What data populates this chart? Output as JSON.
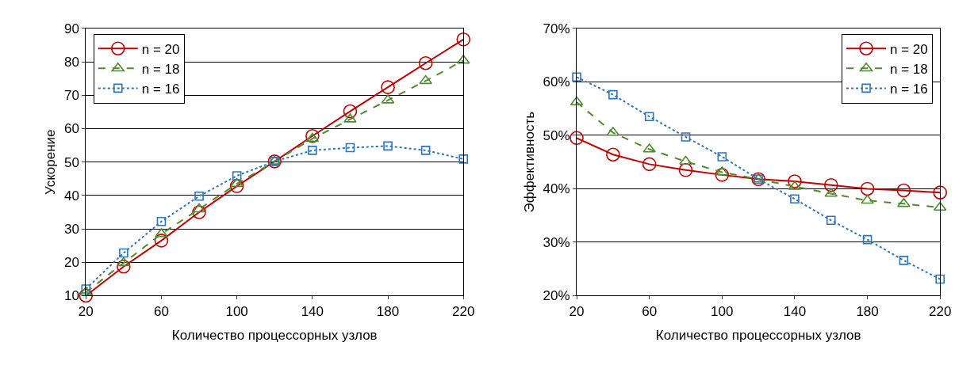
{
  "chart_data": [
    {
      "type": "line",
      "xlabel": "Количество процессорных узлов",
      "ylabel": "Ускорение",
      "x": [
        20,
        40,
        60,
        80,
        100,
        120,
        140,
        160,
        180,
        200,
        220
      ],
      "xlim": [
        20,
        220
      ],
      "xticks": [
        20,
        60,
        100,
        140,
        180,
        220
      ],
      "ylim": [
        10,
        90
      ],
      "yticks": [
        10,
        20,
        30,
        40,
        50,
        60,
        70,
        80,
        90
      ],
      "grid": "y",
      "legend": "top left",
      "series": [
        {
          "name": "n = 20",
          "color": "#c00000",
          "marker": "circle",
          "line_style": "solid",
          "values": [
            10,
            18.7,
            26.5,
            35,
            42.8,
            50.2,
            57.8,
            65.2,
            72.4,
            79.6,
            86.7
          ]
        },
        {
          "name": "n = 18",
          "color": "#4e8a2e",
          "marker": "triangle",
          "line_style": "dashed",
          "values": [
            11,
            19.8,
            28.5,
            35.9,
            43.5,
            50.2,
            57,
            62.8,
            68.5,
            74.3,
            80.4
          ]
        },
        {
          "name": "n = 16",
          "color": "#2e75b6",
          "marker": "square",
          "line_style": "dotted",
          "values": [
            12,
            22.8,
            32.2,
            39.8,
            45.9,
            50.2,
            53.5,
            54.3,
            54.8,
            53.5,
            50.9
          ]
        }
      ]
    },
    {
      "type": "line",
      "xlabel": "Количество процессорных узлов",
      "ylabel": "Эффективность",
      "x": [
        20,
        40,
        60,
        80,
        100,
        120,
        140,
        160,
        180,
        200,
        220
      ],
      "xlim": [
        20,
        220
      ],
      "xticks": [
        20,
        60,
        100,
        140,
        180,
        220
      ],
      "ylim": [
        20,
        70
      ],
      "yticks": [
        {
          "value": 20,
          "label": "20%"
        },
        {
          "value": 30,
          "label": "30%"
        },
        {
          "value": 40,
          "label": "40%"
        },
        {
          "value": 50,
          "label": "50%"
        },
        {
          "value": 60,
          "label": "60%"
        },
        {
          "value": 70,
          "label": "70%"
        }
      ],
      "grid": "y",
      "legend": "top right",
      "series": [
        {
          "name": "n = 20",
          "color": "#c00000",
          "marker": "circle",
          "line_style": "solid",
          "values": [
            49.5,
            46.4,
            44.6,
            43.5,
            42.6,
            41.8,
            41.4,
            40.7,
            40.0,
            39.7,
            39.3
          ]
        },
        {
          "name": "n = 18",
          "color": "#4e8a2e",
          "marker": "triangle",
          "line_style": "dashed",
          "values": [
            56.2,
            50.5,
            47.4,
            45.1,
            43.1,
            41.8,
            40.4,
            39.1,
            37.8,
            37.2,
            36.5
          ]
        },
        {
          "name": "n = 16",
          "color": "#2e75b6",
          "marker": "square",
          "line_style": "dotted",
          "values": [
            60.9,
            57.6,
            53.5,
            49.7,
            46.0,
            41.8,
            38.1,
            34.1,
            30.5,
            26.6,
            23.1
          ]
        }
      ]
    }
  ]
}
